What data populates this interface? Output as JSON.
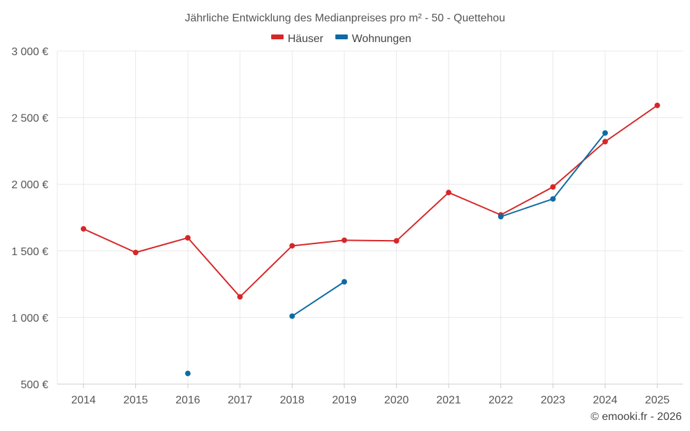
{
  "chart_data": {
    "type": "line",
    "title": "Jährliche Entwicklung des Medianpreises pro m² - 50 - Quettehou",
    "categories": [
      "2014",
      "2015",
      "2016",
      "2017",
      "2018",
      "2019",
      "2020",
      "2021",
      "2022",
      "2023",
      "2024",
      "2025"
    ],
    "series": [
      {
        "name": "Häuser",
        "color": "#d62728",
        "values": [
          1665,
          1488,
          1598,
          1155,
          1538,
          1580,
          1575,
          1938,
          1770,
          1980,
          2320,
          2592
        ]
      },
      {
        "name": "Wohnungen",
        "color": "#0e6aa3",
        "values": [
          null,
          null,
          580,
          null,
          1010,
          1268,
          null,
          null,
          1757,
          1890,
          2385,
          null
        ]
      }
    ],
    "yticks": [
      500,
      1000,
      1500,
      2000,
      2500,
      3000
    ],
    "ytick_labels": [
      "500 €",
      "1 000 €",
      "1 500 €",
      "2 000 €",
      "2 500 €",
      "3 000 €"
    ],
    "ylim": [
      500,
      3000
    ],
    "xlabel": "",
    "ylabel": "",
    "legend_position": "top-center",
    "grid": true
  },
  "credit": "© emooki.fr - 2026"
}
